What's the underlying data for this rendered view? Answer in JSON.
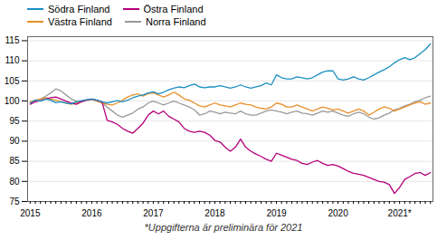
{
  "chart_data": {
    "type": "line",
    "caption": "*Uppgifterna är preliminära för 2021",
    "categories": [
      "2015",
      null,
      null,
      null,
      null,
      null,
      null,
      null,
      null,
      null,
      null,
      null,
      "2016",
      null,
      null,
      null,
      null,
      null,
      null,
      null,
      null,
      null,
      null,
      null,
      "2017",
      null,
      null,
      null,
      null,
      null,
      null,
      null,
      null,
      null,
      null,
      null,
      "2018",
      null,
      null,
      null,
      null,
      null,
      null,
      null,
      null,
      null,
      null,
      null,
      "2019",
      null,
      null,
      null,
      null,
      null,
      null,
      null,
      null,
      null,
      null,
      null,
      "2020",
      null,
      null,
      null,
      null,
      null,
      null,
      null,
      null,
      null,
      null,
      null,
      "2021*",
      null,
      null,
      null,
      null,
      null,
      null
    ],
    "series": [
      {
        "name": "Södra Finland",
        "color": "#1a8fc1",
        "values": [
          99.5,
          100.2,
          100.0,
          100.5,
          100.2,
          99.6,
          99.8,
          99.5,
          99.3,
          99.8,
          100.1,
          100.3,
          100.5,
          100.2,
          99.8,
          99.5,
          99.8,
          100.1,
          99.8,
          100.2,
          100.8,
          101.2,
          101.5,
          102.0,
          102.3,
          101.8,
          102.2,
          102.8,
          103.2,
          103.5,
          103.3,
          103.8,
          104.2,
          103.5,
          103.3,
          103.5,
          103.5,
          103.8,
          103.5,
          103.2,
          103.5,
          104.0,
          103.5,
          103.2,
          103.5,
          103.8,
          104.5,
          104.0,
          106.5,
          105.8,
          105.5,
          105.5,
          106.0,
          105.8,
          105.5,
          105.8,
          106.5,
          107.2,
          107.5,
          107.5,
          105.5,
          105.2,
          105.5,
          106.0,
          105.5,
          105.2,
          105.8,
          106.5,
          107.2,
          107.8,
          108.5,
          109.5,
          110.3,
          110.8,
          110.3,
          110.8,
          111.8,
          112.8,
          114.2
        ]
      },
      {
        "name": "Östra Finland",
        "color": "#b5007a",
        "values": [
          99.2,
          99.8,
          100.1,
          100.5,
          100.8,
          101.0,
          100.5,
          100.0,
          99.5,
          99.2,
          99.8,
          100.2,
          100.5,
          100.2,
          99.8,
          95.2,
          94.8,
          94.2,
          93.2,
          92.5,
          92.0,
          93.2,
          94.5,
          96.5,
          97.5,
          96.8,
          97.5,
          96.2,
          95.5,
          94.8,
          93.2,
          92.5,
          92.2,
          92.5,
          92.2,
          91.5,
          90.2,
          89.8,
          88.5,
          87.5,
          88.5,
          90.5,
          88.5,
          87.5,
          86.8,
          86.2,
          85.5,
          85.0,
          87.0,
          86.5,
          86.0,
          85.5,
          85.2,
          84.5,
          84.2,
          84.8,
          85.2,
          84.5,
          84.0,
          84.2,
          83.8,
          83.2,
          82.5,
          82.0,
          81.8,
          81.5,
          81.0,
          80.5,
          80.0,
          79.8,
          79.2,
          77.0,
          78.5,
          80.5,
          81.2,
          82.0,
          82.2,
          81.5,
          82.2
        ]
      },
      {
        "name": "Västra Finland",
        "color": "#e8902a",
        "values": [
          99.8,
          100.2,
          100.5,
          100.8,
          100.5,
          100.2,
          99.8,
          99.5,
          99.2,
          99.5,
          100.0,
          100.2,
          100.5,
          100.0,
          99.5,
          99.2,
          99.0,
          99.5,
          100.2,
          101.0,
          101.5,
          101.8,
          101.2,
          101.8,
          102.0,
          101.5,
          101.0,
          101.5,
          102.2,
          101.5,
          100.5,
          100.2,
          99.5,
          98.8,
          98.5,
          99.0,
          99.5,
          99.0,
          98.8,
          98.5,
          99.0,
          99.5,
          99.2,
          99.0,
          98.5,
          98.2,
          98.0,
          98.5,
          99.5,
          99.2,
          98.5,
          98.5,
          99.0,
          98.5,
          98.0,
          97.5,
          98.0,
          98.5,
          98.2,
          97.8,
          98.0,
          97.5,
          97.0,
          97.5,
          98.0,
          97.5,
          96.5,
          97.2,
          98.0,
          98.5,
          98.2,
          97.5,
          98.0,
          98.5,
          99.0,
          99.5,
          99.8,
          99.2,
          99.5
        ]
      },
      {
        "name": "Norra Finland",
        "color": "#9a9a9a",
        "values": [
          99.5,
          100.0,
          100.5,
          101.2,
          102.0,
          103.0,
          102.5,
          101.5,
          100.5,
          100.0,
          99.8,
          100.2,
          100.5,
          100.0,
          99.5,
          98.5,
          97.5,
          96.5,
          96.0,
          96.5,
          97.0,
          98.0,
          98.5,
          99.5,
          100.0,
          99.5,
          99.0,
          99.5,
          100.0,
          99.5,
          99.0,
          98.5,
          97.8,
          96.5,
          96.8,
          97.5,
          97.2,
          96.8,
          97.2,
          97.0,
          96.8,
          97.5,
          96.8,
          96.5,
          96.5,
          97.0,
          97.5,
          97.8,
          97.5,
          97.2,
          96.8,
          97.2,
          97.5,
          97.0,
          96.8,
          96.5,
          97.0,
          97.5,
          97.2,
          97.5,
          97.0,
          96.5,
          96.2,
          96.8,
          97.2,
          96.8,
          96.0,
          95.5,
          95.8,
          96.5,
          97.0,
          97.8,
          98.2,
          98.8,
          99.2,
          99.8,
          100.2,
          100.8,
          101.2
        ]
      }
    ],
    "ylim": [
      75,
      116
    ],
    "yticks": [
      75,
      80,
      85,
      90,
      95,
      100,
      105,
      110,
      115
    ],
    "grid": true,
    "legend": "upper left"
  }
}
